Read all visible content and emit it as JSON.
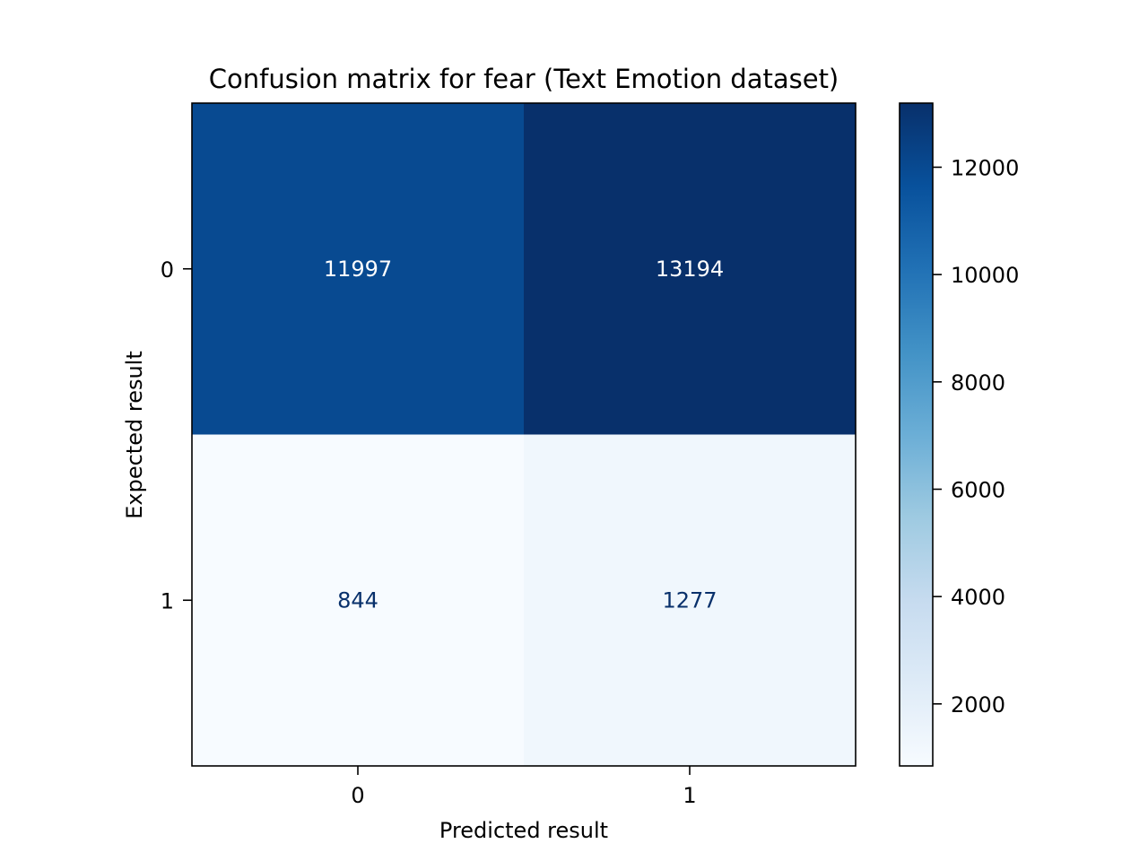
{
  "chart_data": {
    "type": "heatmap",
    "title": "Confusion matrix for fear (Text Emotion dataset)",
    "xlabel": "Predicted result",
    "ylabel": "Expected result",
    "x_categories": [
      "0",
      "1"
    ],
    "y_categories": [
      "0",
      "1"
    ],
    "values": [
      [
        11997,
        13194
      ],
      [
        844,
        1277
      ]
    ],
    "colormap": "Blues",
    "colorbar": {
      "range": [
        844,
        13194
      ],
      "ticks": [
        2000,
        4000,
        6000,
        8000,
        10000,
        12000
      ],
      "tick_labels": [
        "2000",
        "4000",
        "6000",
        "8000",
        "10000",
        "12000"
      ]
    },
    "grid": false
  }
}
